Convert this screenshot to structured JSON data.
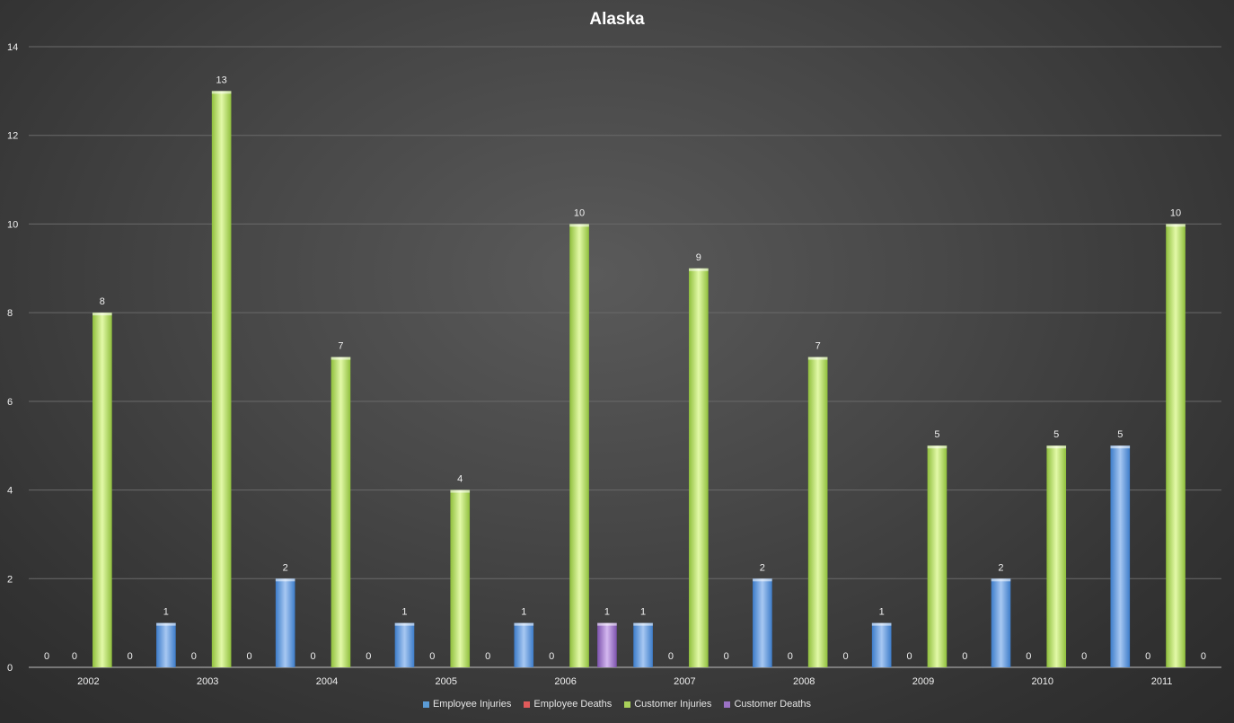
{
  "chart_data": {
    "type": "bar",
    "title": "Alaska",
    "categories": [
      "2002",
      "2003",
      "2004",
      "2005",
      "2006",
      "2007",
      "2008",
      "2009",
      "2010",
      "2011"
    ],
    "series": [
      {
        "name": "Employee Injuries",
        "color": "#5b9bd5",
        "values": [
          0,
          1,
          2,
          1,
          1,
          1,
          2,
          1,
          2,
          5
        ]
      },
      {
        "name": "Employee Deaths",
        "color": "#e05a5a",
        "values": [
          0,
          0,
          0,
          0,
          0,
          0,
          0,
          0,
          0,
          0
        ]
      },
      {
        "name": "Customer Injuries",
        "color": "#a9d15a",
        "values": [
          8,
          13,
          7,
          4,
          10,
          9,
          7,
          5,
          5,
          10
        ]
      },
      {
        "name": "Customer Deaths",
        "color": "#9b72c4",
        "values": [
          0,
          0,
          0,
          0,
          1,
          0,
          0,
          0,
          0,
          0
        ]
      }
    ],
    "ylim": [
      0,
      14
    ],
    "yticks": [
      0,
      2,
      4,
      6,
      8,
      10,
      12,
      14
    ],
    "grid": true,
    "legend_position": "bottom"
  }
}
